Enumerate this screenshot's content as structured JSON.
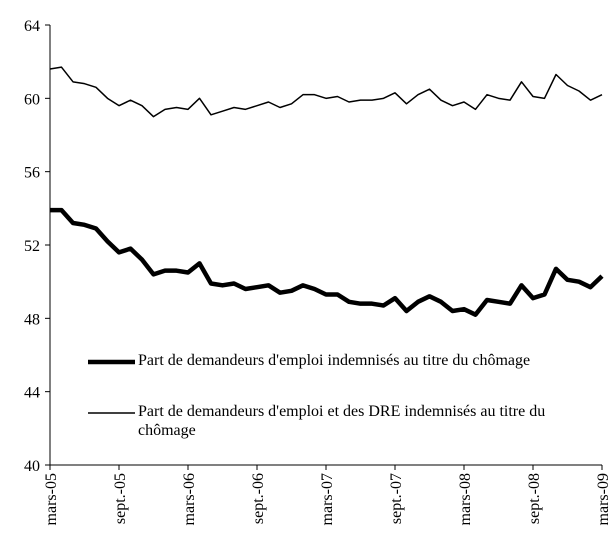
{
  "chart_data": {
    "type": "line",
    "categories": [
      "mars-05",
      null,
      null,
      null,
      null,
      null,
      "sept.-05",
      null,
      null,
      null,
      null,
      null,
      "mars-06",
      null,
      null,
      null,
      null,
      null,
      "sept.-06",
      null,
      null,
      null,
      null,
      null,
      "mars-07",
      null,
      null,
      null,
      null,
      null,
      "sept.-07",
      null,
      null,
      null,
      null,
      null,
      "mars-08",
      null,
      null,
      null,
      null,
      null,
      "sept.-08",
      null,
      null,
      null,
      null,
      null,
      "mars-09"
    ],
    "series": [
      {
        "name": "Part de demandeurs d'emploi indemnisés au titre du chômage",
        "color": "#000000",
        "width": 4.5,
        "values": [
          53.9,
          53.9,
          53.2,
          53.1,
          52.9,
          52.2,
          51.6,
          51.8,
          51.2,
          50.4,
          50.6,
          50.6,
          50.5,
          51.0,
          49.9,
          49.8,
          49.9,
          49.6,
          49.7,
          49.8,
          49.4,
          49.5,
          49.8,
          49.6,
          49.3,
          49.3,
          48.9,
          48.8,
          48.8,
          48.7,
          49.1,
          48.4,
          48.9,
          49.2,
          48.9,
          48.4,
          48.5,
          48.2,
          49.0,
          48.9,
          48.8,
          49.8,
          49.1,
          49.3,
          50.7,
          50.1,
          50.0,
          49.7,
          50.3
        ]
      },
      {
        "name": "Part de demandeurs d'emploi et des DRE indemnisés au titre du chômage",
        "color": "#000000",
        "width": 1.5,
        "values": [
          61.6,
          61.7,
          60.9,
          60.8,
          60.6,
          60.0,
          59.6,
          59.9,
          59.6,
          59.0,
          59.4,
          59.5,
          59.4,
          60.0,
          59.1,
          59.3,
          59.5,
          59.4,
          59.6,
          59.8,
          59.5,
          59.7,
          60.2,
          60.2,
          60.0,
          60.1,
          59.8,
          59.9,
          59.9,
          60.0,
          60.3,
          59.7,
          60.2,
          60.5,
          59.9,
          59.6,
          59.8,
          59.4,
          60.2,
          60.0,
          59.9,
          60.9,
          60.1,
          60.0,
          61.3,
          60.7,
          60.4,
          59.9,
          60.2
        ]
      }
    ],
    "ylim": [
      40,
      64
    ],
    "yticks": [
      40,
      44,
      48,
      52,
      56,
      60,
      64
    ],
    "grid": false,
    "legend": "lower left"
  }
}
